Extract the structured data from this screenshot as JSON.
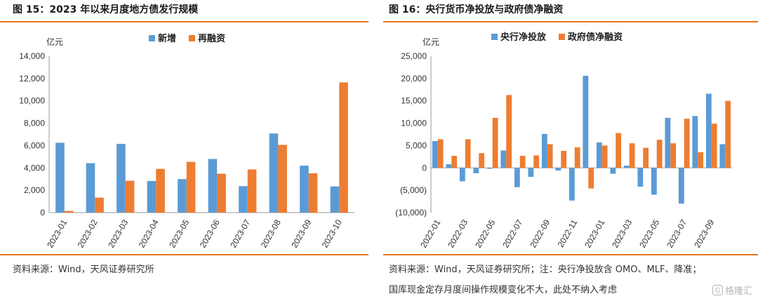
{
  "left": {
    "title": "图 15：2023 年以来月度地方债发行规模",
    "source": "资料来源：Wind，天风证券研究所",
    "chart_data": {
      "type": "bar",
      "unit": "亿元",
      "categories": [
        "2023-01",
        "2023-02",
        "2023-03",
        "2023-04",
        "2023-05",
        "2023-06",
        "2023-07",
        "2023-08",
        "2023-09",
        "2023-10"
      ],
      "series": [
        {
          "name": "新增",
          "color": "#5b9bd5",
          "values": [
            6250,
            4420,
            6150,
            2830,
            3000,
            4800,
            2370,
            7080,
            4200,
            2340
          ]
        },
        {
          "name": "再融资",
          "color": "#ed7d31",
          "values": [
            150,
            1340,
            2850,
            3910,
            4540,
            3480,
            3860,
            6060,
            3520,
            11650
          ]
        }
      ],
      "ylim": [
        0,
        14000
      ],
      "yticks": [
        0,
        2000,
        4000,
        6000,
        8000,
        10000,
        12000,
        14000
      ],
      "ytick_labels": [
        "0",
        "2,000",
        "4,000",
        "6,000",
        "8,000",
        "10,000",
        "12,000",
        "14,000"
      ],
      "legend_position": "top-center",
      "grid": false
    }
  },
  "right": {
    "title": "图 16：央行货币净投放与政府债净融资",
    "source_line1": "资料来源：Wind，天风证券研究所；注：央行净投放含 OMO、MLF、降准；",
    "source_line2": "国库现金定存月度间操作规模变化不大，此处不纳入考虑",
    "watermark": "格隆汇",
    "chart_data": {
      "type": "bar",
      "unit": "亿元",
      "categories": [
        "2022-01",
        "2022-02",
        "2022-03",
        "2022-04",
        "2022-05",
        "2022-06",
        "2022-07",
        "2022-08",
        "2022-09",
        "2022-10",
        "2022-11",
        "2022-12",
        "2023-01",
        "2023-02",
        "2023-03",
        "2023-04",
        "2023-05",
        "2023-06",
        "2023-07",
        "2023-08",
        "2023-09",
        "2023-10"
      ],
      "x_tick_labels": [
        "2022-01",
        "",
        "2022-03",
        "",
        "2022-05",
        "",
        "2022-07",
        "",
        "2022-09",
        "",
        "2022-11",
        "",
        "2023-01",
        "",
        "2023-03",
        "",
        "2023-05",
        "",
        "2023-07",
        "",
        "2023-09",
        ""
      ],
      "series": [
        {
          "name": "央行净投放",
          "color": "#5b9bd5",
          "values": [
            6000,
            800,
            -3000,
            -1200,
            -200,
            3900,
            -4300,
            -2000,
            7600,
            -600,
            -7300,
            20600,
            5700,
            -1300,
            500,
            -4200,
            -6000,
            11200,
            -8000,
            11600,
            16600,
            5300
          ]
        },
        {
          "name": "政府债净融资",
          "color": "#ed7d31",
          "values": [
            6400,
            2700,
            6400,
            3300,
            11200,
            16300,
            2700,
            2800,
            5300,
            3800,
            4600,
            -4600,
            5000,
            7800,
            5500,
            4500,
            6300,
            5500,
            11000,
            3500,
            9900,
            15000
          ]
        }
      ],
      "ylim": [
        -10000,
        25000
      ],
      "yticks": [
        -10000,
        -5000,
        0,
        5000,
        10000,
        15000,
        20000,
        25000
      ],
      "ytick_labels": [
        "(10,000)",
        "(5,000)",
        "0",
        "5,000",
        "10,000",
        "15,000",
        "20,000",
        "25,000"
      ],
      "legend_position": "top-center",
      "grid": false
    }
  }
}
